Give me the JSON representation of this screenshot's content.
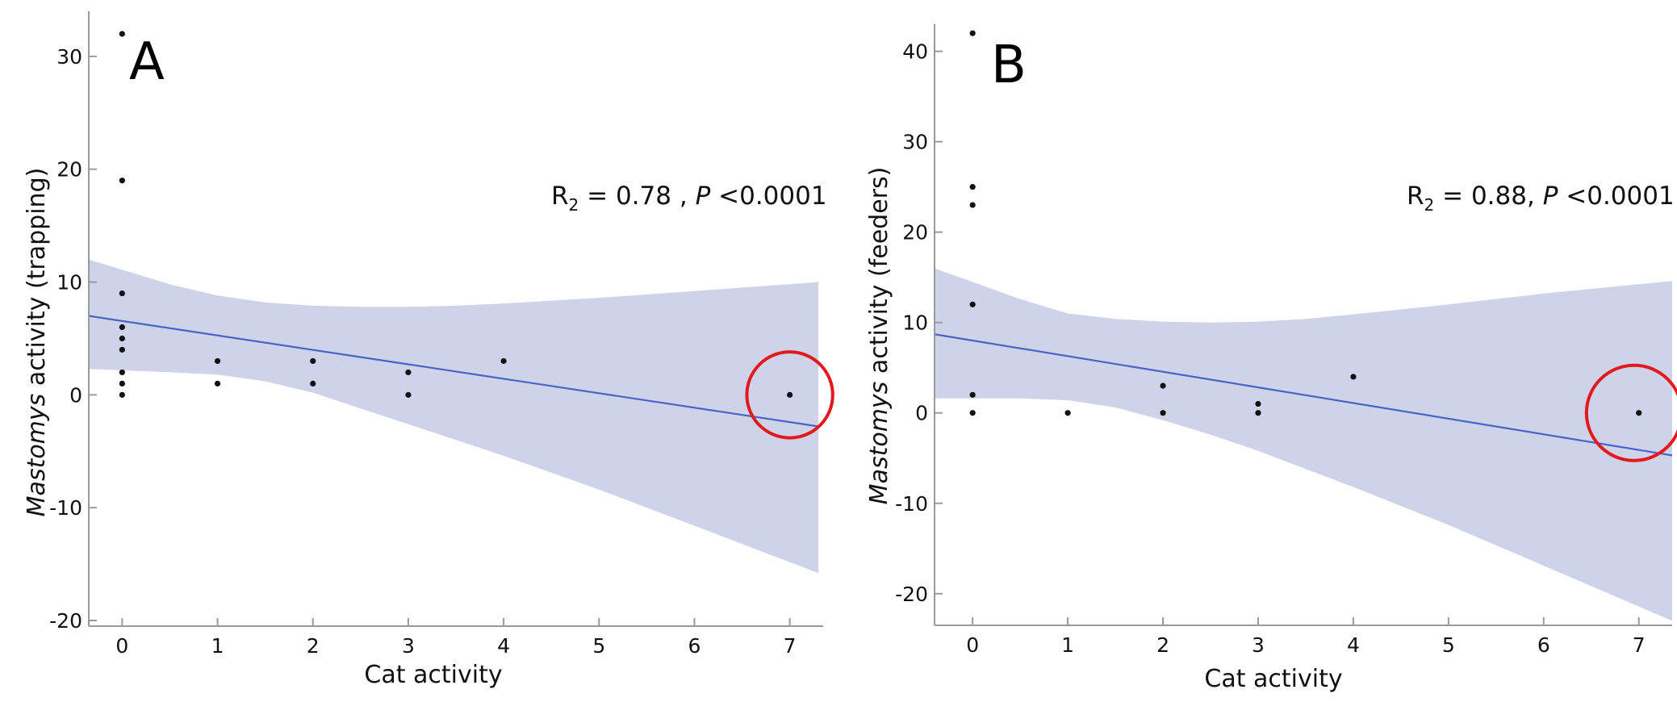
{
  "colors": {
    "band": "#cfd3ea",
    "line": "#4a63c6",
    "point": "#111111",
    "highlight": "#e3191c"
  },
  "chart_data": [
    {
      "type": "scatter",
      "panel_label": "A",
      "title": "",
      "xlabel": "Cat activity",
      "ylabel_italic": "Mastomys",
      "ylabel_rest": " activity (trapping)",
      "xlim": [
        -0.35,
        7.35
      ],
      "ylim": [
        -20.5,
        34
      ],
      "xticks": [
        0,
        1,
        2,
        3,
        4,
        5,
        6,
        7
      ],
      "yticks": [
        -20,
        -10,
        0,
        10,
        20,
        30
      ],
      "stat": {
        "r_main": "R",
        "r_sub": "2",
        "r_value": " = 0.78 , ",
        "p_italic": "P",
        "p_value": " <0.0001"
      },
      "points": [
        {
          "x": 0,
          "y": 32
        },
        {
          "x": 0,
          "y": 19
        },
        {
          "x": 0,
          "y": 9
        },
        {
          "x": 0,
          "y": 6
        },
        {
          "x": 0,
          "y": 5
        },
        {
          "x": 0,
          "y": 4
        },
        {
          "x": 0,
          "y": 2
        },
        {
          "x": 0,
          "y": 1
        },
        {
          "x": 0,
          "y": 0
        },
        {
          "x": 1,
          "y": 3
        },
        {
          "x": 1,
          "y": 1
        },
        {
          "x": 2,
          "y": 3
        },
        {
          "x": 2,
          "y": 1
        },
        {
          "x": 3,
          "y": 2
        },
        {
          "x": 3,
          "y": 0
        },
        {
          "x": 4,
          "y": 3
        },
        {
          "x": 7,
          "y": 0
        }
      ],
      "fit": {
        "x": [
          -0.35,
          7.3
        ],
        "y": [
          7.0,
          -2.8
        ]
      },
      "band": [
        {
          "x": -0.35,
          "lo": 2.3,
          "hi": 12.0
        },
        {
          "x": 0.5,
          "lo": 2.0,
          "hi": 9.8
        },
        {
          "x": 1.0,
          "lo": 1.8,
          "hi": 8.8
        },
        {
          "x": 1.5,
          "lo": 1.2,
          "hi": 8.2
        },
        {
          "x": 2.0,
          "lo": 0.2,
          "hi": 7.9
        },
        {
          "x": 2.5,
          "lo": -1.2,
          "hi": 7.8
        },
        {
          "x": 3.0,
          "lo": -2.6,
          "hi": 7.8
        },
        {
          "x": 3.5,
          "lo": -4.0,
          "hi": 7.9
        },
        {
          "x": 4.0,
          "lo": -5.4,
          "hi": 8.1
        },
        {
          "x": 5.0,
          "lo": -8.4,
          "hi": 8.6
        },
        {
          "x": 6.0,
          "lo": -11.6,
          "hi": 9.2
        },
        {
          "x": 7.3,
          "lo": -15.8,
          "hi": 10.0
        }
      ],
      "highlight": {
        "x": 7,
        "y": 0,
        "radius_x": 0.45
      }
    },
    {
      "type": "scatter",
      "panel_label": "B",
      "title": "",
      "xlabel": "Cat activity",
      "ylabel_italic": "Mastomys",
      "ylabel_rest": " activity (feeders)",
      "xlim": [
        -0.4,
        7.35
      ],
      "ylim": [
        -23.5,
        43
      ],
      "xticks": [
        0,
        1,
        2,
        3,
        4,
        5,
        6,
        7
      ],
      "yticks": [
        -20,
        -10,
        0,
        10,
        20,
        30,
        40
      ],
      "stat": {
        "r_main": "R",
        "r_sub": "2",
        "r_value": " = 0.88, ",
        "p_italic": "P",
        "p_value": " <0.0001"
      },
      "points": [
        {
          "x": 0,
          "y": 42
        },
        {
          "x": 0,
          "y": 25
        },
        {
          "x": 0,
          "y": 23
        },
        {
          "x": 0,
          "y": 12
        },
        {
          "x": 0,
          "y": 2
        },
        {
          "x": 0,
          "y": 0
        },
        {
          "x": 1,
          "y": 0
        },
        {
          "x": 2,
          "y": 3
        },
        {
          "x": 2,
          "y": 0
        },
        {
          "x": 3,
          "y": 1
        },
        {
          "x": 3,
          "y": 0
        },
        {
          "x": 4,
          "y": 4
        },
        {
          "x": 7,
          "y": 0
        }
      ],
      "fit": {
        "x": [
          -0.4,
          7.35
        ],
        "y": [
          8.7,
          -4.7
        ]
      },
      "band": [
        {
          "x": -0.4,
          "lo": 1.6,
          "hi": 16.0
        },
        {
          "x": 0.5,
          "lo": 1.6,
          "hi": 12.6
        },
        {
          "x": 1.0,
          "lo": 1.4,
          "hi": 11.0
        },
        {
          "x": 1.5,
          "lo": 0.6,
          "hi": 10.4
        },
        {
          "x": 2.0,
          "lo": -0.8,
          "hi": 10.1
        },
        {
          "x": 2.5,
          "lo": -2.4,
          "hi": 10.0
        },
        {
          "x": 3.0,
          "lo": -4.2,
          "hi": 10.1
        },
        {
          "x": 3.5,
          "lo": -6.2,
          "hi": 10.4
        },
        {
          "x": 4.0,
          "lo": -8.2,
          "hi": 10.9
        },
        {
          "x": 5.0,
          "lo": -12.4,
          "hi": 12.0
        },
        {
          "x": 6.0,
          "lo": -16.9,
          "hi": 13.2
        },
        {
          "x": 7.35,
          "lo": -23.0,
          "hi": 14.6
        }
      ],
      "highlight": {
        "x": 6.95,
        "y": 0,
        "radius_x": 0.5
      }
    }
  ]
}
